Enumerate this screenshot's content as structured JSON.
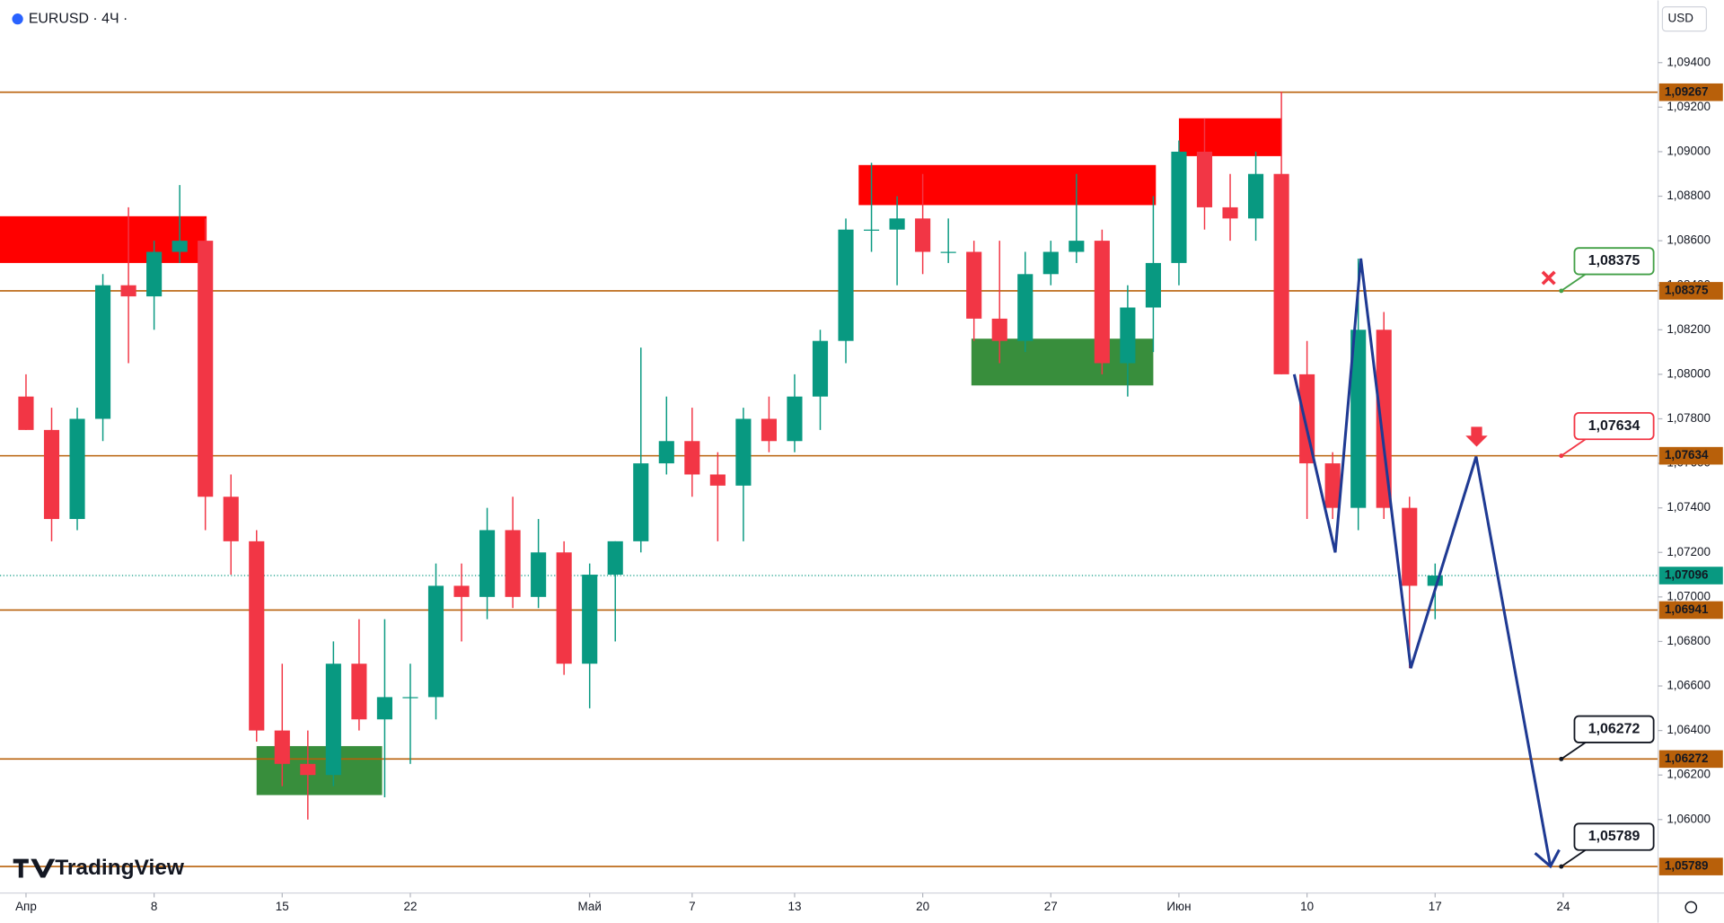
{
  "chart_data": {
    "type": "candlestick",
    "title": "EURUSD · 4Ч ·",
    "currency": "USD",
    "brand": "TradingView",
    "up_color": "#089981",
    "down_color": "#f23645",
    "ylim": [
      1.0567,
      1.0968
    ],
    "xlim": [
      -1.015,
      63.7
    ],
    "yticks": [
      {
        "value": 1.06,
        "label": "1,06000"
      },
      {
        "value": 1.062,
        "label": "1,06200"
      },
      {
        "value": 1.064,
        "label": "1,06400"
      },
      {
        "value": 1.066,
        "label": "1,06600"
      },
      {
        "value": 1.068,
        "label": "1,06800"
      },
      {
        "value": 1.07,
        "label": "1,07000"
      },
      {
        "value": 1.072,
        "label": "1,07200"
      },
      {
        "value": 1.074,
        "label": "1,07400"
      },
      {
        "value": 1.076,
        "label": "1,07600"
      },
      {
        "value": 1.078,
        "label": "1,07800"
      },
      {
        "value": 1.08,
        "label": "1,08000"
      },
      {
        "value": 1.082,
        "label": "1,08200"
      },
      {
        "value": 1.084,
        "label": "1,08400"
      },
      {
        "value": 1.086,
        "label": "1,08600"
      },
      {
        "value": 1.088,
        "label": "1,08800"
      },
      {
        "value": 1.09,
        "label": "1,09000"
      },
      {
        "value": 1.092,
        "label": "1,09200"
      },
      {
        "value": 1.094,
        "label": "1,09400"
      }
    ],
    "xticks": [
      {
        "value": 0,
        "label": "Апр"
      },
      {
        "value": 5,
        "label": "8"
      },
      {
        "value": 10,
        "label": "15"
      },
      {
        "value": 15,
        "label": "22"
      },
      {
        "value": 22,
        "label": "Май"
      },
      {
        "value": 26,
        "label": "7"
      },
      {
        "value": 30,
        "label": "13"
      },
      {
        "value": 35,
        "label": "20"
      },
      {
        "value": 40,
        "label": "27"
      },
      {
        "value": 45,
        "label": "Июн"
      },
      {
        "value": 50,
        "label": "10"
      },
      {
        "value": 55,
        "label": "17"
      },
      {
        "value": 60,
        "label": "24"
      }
    ],
    "open": [
      1.079,
      1.0775,
      1.0735,
      1.078,
      1.084,
      1.0835,
      1.0855,
      1.086,
      1.0745,
      1.0725,
      1.064,
      1.0625,
      1.062,
      1.067,
      1.0645,
      1.0655,
      1.0655,
      1.0705,
      1.07,
      1.073,
      1.07,
      1.072,
      1.067,
      1.071,
      1.0725,
      1.076,
      1.077,
      1.0755,
      1.075,
      1.078,
      1.077,
      1.079,
      1.0815,
      1.0865,
      1.0865,
      1.087,
      1.0855,
      1.0855,
      1.0825,
      1.0815,
      1.0845,
      1.0855,
      1.086,
      1.0805,
      1.083,
      1.085,
      1.09,
      1.0875,
      1.087,
      1.089,
      1.08,
      1.076,
      1.074,
      1.082,
      1.074,
      1.0705
    ],
    "high": [
      1.08,
      1.0785,
      1.0785,
      1.0845,
      1.0875,
      1.086,
      1.0885,
      1.087,
      1.0755,
      1.073,
      1.067,
      1.064,
      1.068,
      1.069,
      1.069,
      1.067,
      1.0715,
      1.0715,
      1.074,
      1.0745,
      1.0735,
      1.0725,
      1.0715,
      1.0725,
      1.0812,
      1.079,
      1.0785,
      1.0765,
      1.0785,
      1.079,
      1.08,
      1.082,
      1.087,
      1.0895,
      1.088,
      1.089,
      1.087,
      1.086,
      1.086,
      1.0855,
      1.086,
      1.089,
      1.0865,
      1.084,
      1.088,
      1.0905,
      1.0915,
      1.089,
      1.09,
      1.0927,
      1.0815,
      1.0765,
      1.0852,
      1.0828,
      1.0745,
      1.0715
    ],
    "low": [
      1.0775,
      1.0725,
      1.073,
      1.077,
      1.0805,
      1.082,
      1.085,
      1.073,
      1.071,
      1.0635,
      1.0615,
      1.06,
      1.0615,
      1.064,
      1.061,
      1.0625,
      1.0645,
      1.068,
      1.069,
      1.0695,
      1.0695,
      1.0665,
      1.065,
      1.068,
      1.072,
      1.0755,
      1.0745,
      1.0725,
      1.0725,
      1.0765,
      1.0765,
      1.0775,
      1.0805,
      1.0855,
      1.084,
      1.0845,
      1.085,
      1.0815,
      1.0805,
      1.081,
      1.084,
      1.085,
      1.08,
      1.079,
      1.081,
      1.084,
      1.0865,
      1.086,
      1.086,
      1.08,
      1.0735,
      1.0735,
      1.073,
      1.0735,
      1.0668,
      1.069
    ],
    "close": [
      1.0775,
      1.0735,
      1.078,
      1.084,
      1.0835,
      1.0855,
      1.086,
      1.0745,
      1.0725,
      1.064,
      1.0625,
      1.062,
      1.067,
      1.0645,
      1.0655,
      1.0655,
      1.0705,
      1.07,
      1.073,
      1.07,
      1.072,
      1.067,
      1.071,
      1.0725,
      1.076,
      1.077,
      1.0755,
      1.075,
      1.078,
      1.077,
      1.079,
      1.0815,
      1.0865,
      1.0865,
      1.087,
      1.0855,
      1.0855,
      1.0825,
      1.0815,
      1.0845,
      1.0855,
      1.086,
      1.0805,
      1.083,
      1.085,
      1.09,
      1.0875,
      1.087,
      1.089,
      1.08,
      1.076,
      1.074,
      1.082,
      1.074,
      1.0705,
      1.07096
    ],
    "level_color": "#b8600a",
    "levels": [
      {
        "value": 1.09267,
        "label": "1,09267"
      },
      {
        "value": 1.08375,
        "label": "1,08375",
        "callout": "#43a047"
      },
      {
        "value": 1.07634,
        "label": "1,07634",
        "callout": "#f23645"
      },
      {
        "value": 1.06941,
        "label": "1,06941"
      },
      {
        "value": 1.06272,
        "label": "1,06272",
        "callout": "#131722"
      },
      {
        "value": 1.05789,
        "label": "1,05789",
        "callout": "#131722"
      }
    ],
    "last_price": {
      "value": 1.07096,
      "label": "1,07096",
      "color": "#089981"
    },
    "supply_zones": {
      "color": "#ff0000",
      "zones": [
        {
          "x": [
            -1.015,
            7.05
          ],
          "y": [
            1.085,
            1.0871
          ]
        },
        {
          "x": [
            32.5,
            44.1
          ],
          "y": [
            1.0876,
            1.0894
          ]
        },
        {
          "x": [
            45.0,
            49.0
          ],
          "y": [
            1.0898,
            1.0915
          ]
        }
      ]
    },
    "demand_zones": {
      "color": "#388e3c",
      "zones": [
        {
          "x": [
            9.0,
            13.9
          ],
          "y": [
            1.0611,
            1.0633
          ]
        },
        {
          "x": [
            36.9,
            44.0
          ],
          "y": [
            1.0795,
            1.0816
          ]
        }
      ]
    },
    "projection": {
      "color": "#1f3a93",
      "x": [
        49.5,
        51.1,
        52.1,
        54.05,
        56.6,
        59.5
      ],
      "y": [
        1.08,
        1.072,
        1.0852,
        1.0668,
        1.0763,
        1.0579
      ]
    }
  }
}
